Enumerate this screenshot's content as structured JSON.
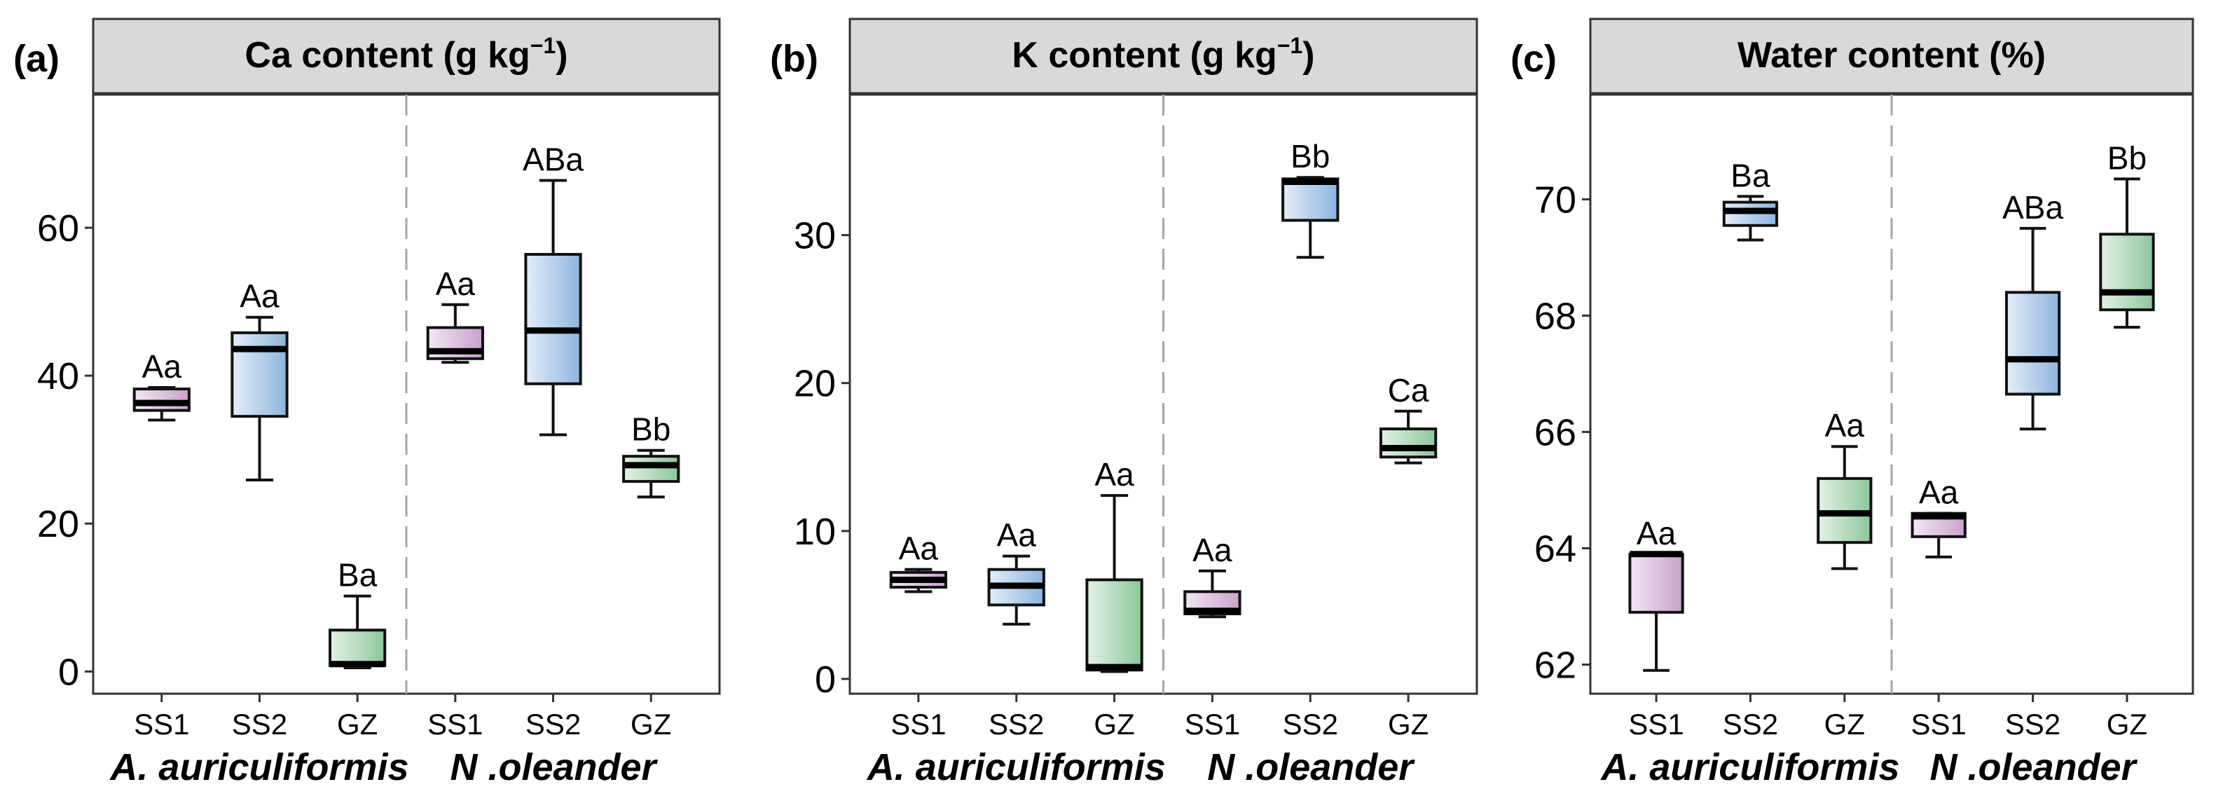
{
  "chart_data": [
    {
      "type": "box",
      "panel_letter": "(a)",
      "title": "Ca content (g kg",
      "title_superscript": "−1",
      "title_suffix": ")",
      "ylim": [
        -3,
        78
      ],
      "yticks": [
        0,
        20,
        40,
        60
      ],
      "ytick_labels": [
        "0",
        "20",
        "40",
        "60"
      ],
      "groups": [
        {
          "name": "A. auriculiformis",
          "categories": [
            "SS1",
            "SS2",
            "GZ"
          ]
        },
        {
          "name": "N .oleander",
          "categories": [
            "SS1",
            "SS2",
            "GZ"
          ]
        }
      ],
      "boxes": [
        {
          "group": 0,
          "category": "SS1",
          "min": 34,
          "q1": 35.3,
          "median": 36.3,
          "q3": 38.2,
          "max": 38.4,
          "label": "Aa",
          "color": "#d9b8d9"
        },
        {
          "group": 0,
          "category": "SS2",
          "min": 25.9,
          "q1": 34.5,
          "median": 43.6,
          "q3": 45.8,
          "max": 47.9,
          "label": "Aa",
          "color": "#a9c8e8"
        },
        {
          "group": 0,
          "category": "GZ",
          "min": 0.5,
          "q1": 0.8,
          "median": 1,
          "q3": 5.6,
          "max": 10.2,
          "label": "Ba",
          "color": "#a8d5b0"
        },
        {
          "group": 1,
          "category": "SS1",
          "min": 41.8,
          "q1": 42.3,
          "median": 43.3,
          "q3": 46.5,
          "max": 49.6,
          "label": "Aa",
          "color": "#d9b8d9"
        },
        {
          "group": 1,
          "category": "SS2",
          "min": 32,
          "q1": 38.9,
          "median": 46.1,
          "q3": 56.4,
          "max": 66.4,
          "label": "ABa",
          "color": "#a9c8e8"
        },
        {
          "group": 1,
          "category": "GZ",
          "min": 23.6,
          "q1": 25.7,
          "median": 27.9,
          "q3": 29.1,
          "max": 29.9,
          "label": "Bb",
          "color": "#a8d5b0"
        }
      ]
    },
    {
      "type": "box",
      "panel_letter": "(b)",
      "title": "K content (g kg",
      "title_superscript": "−1",
      "title_suffix": ")",
      "ylim": [
        -1,
        39.5
      ],
      "yticks": [
        0,
        10,
        20,
        30
      ],
      "ytick_labels": [
        "0",
        "10",
        "20",
        "30"
      ],
      "groups": [
        {
          "name": "A. auriculiformis",
          "categories": [
            "SS1",
            "SS2",
            "GZ"
          ]
        },
        {
          "name": "N .oleander",
          "categories": [
            "SS1",
            "SS2",
            "GZ"
          ]
        }
      ],
      "boxes": [
        {
          "group": 0,
          "category": "SS1",
          "min": 5.9,
          "q1": 6.2,
          "median": 6.7,
          "q3": 7.2,
          "max": 7.4,
          "label": "Aa",
          "color": "#d9b8d9"
        },
        {
          "group": 0,
          "category": "SS2",
          "min": 3.7,
          "q1": 5,
          "median": 6.3,
          "q3": 7.4,
          "max": 8.3,
          "label": "Aa",
          "color": "#a9c8e8"
        },
        {
          "group": 0,
          "category": "GZ",
          "min": 0.5,
          "q1": 0.6,
          "median": 0.8,
          "q3": 6.7,
          "max": 12.4,
          "label": "Aa",
          "color": "#a8d5b0"
        },
        {
          "group": 1,
          "category": "SS1",
          "min": 4.2,
          "q1": 4.4,
          "median": 4.6,
          "q3": 5.9,
          "max": 7.3,
          "label": "Aa",
          "color": "#d9b8d9"
        },
        {
          "group": 1,
          "category": "SS2",
          "min": 28.5,
          "q1": 31,
          "median": 33.6,
          "q3": 33.8,
          "max": 33.9,
          "label": "Bb",
          "color": "#a9c8e8"
        },
        {
          "group": 1,
          "category": "GZ",
          "min": 14.6,
          "q1": 15,
          "median": 15.6,
          "q3": 16.9,
          "max": 18.1,
          "label": "Ca",
          "color": "#a8d5b0"
        }
      ]
    },
    {
      "type": "box",
      "panel_letter": "(c)",
      "title": "Water content (%)",
      "title_superscript": "",
      "title_suffix": "",
      "ylim": [
        61.5,
        71.8
      ],
      "yticks": [
        62,
        64,
        66,
        68,
        70
      ],
      "ytick_labels": [
        "62",
        "64",
        "66",
        "68",
        "70"
      ],
      "groups": [
        {
          "name": "A. auriculiformis",
          "categories": [
            "SS1",
            "SS2",
            "GZ"
          ]
        },
        {
          "name": "N .oleander",
          "categories": [
            "SS1",
            "SS2",
            "GZ"
          ]
        }
      ],
      "boxes": [
        {
          "group": 0,
          "category": "SS1",
          "min": 61.9,
          "q1": 62.9,
          "median": 63.9,
          "q3": 63.9,
          "max": 63.9,
          "label": "Aa",
          "color": "#d9b8d9"
        },
        {
          "group": 0,
          "category": "SS2",
          "min": 69.3,
          "q1": 69.55,
          "median": 69.8,
          "q3": 69.95,
          "max": 70.05,
          "label": "Ba",
          "color": "#a9c8e8"
        },
        {
          "group": 0,
          "category": "GZ",
          "min": 63.65,
          "q1": 64.1,
          "median": 64.6,
          "q3": 65.2,
          "max": 65.75,
          "label": "Aa",
          "color": "#a8d5b0"
        },
        {
          "group": 1,
          "category": "SS1",
          "min": 63.85,
          "q1": 64.2,
          "median": 64.55,
          "q3": 64.6,
          "max": 64.6,
          "label": "Aa",
          "color": "#d9b8d9"
        },
        {
          "group": 1,
          "category": "SS2",
          "min": 66.05,
          "q1": 66.65,
          "median": 67.25,
          "q3": 68.4,
          "max": 69.5,
          "label": "ABa",
          "color": "#a9c8e8"
        },
        {
          "group": 1,
          "category": "GZ",
          "min": 67.8,
          "q1": 68.1,
          "median": 68.4,
          "q3": 69.4,
          "max": 70.35,
          "label": "Bb",
          "color": "#a8d5b0"
        }
      ]
    }
  ]
}
